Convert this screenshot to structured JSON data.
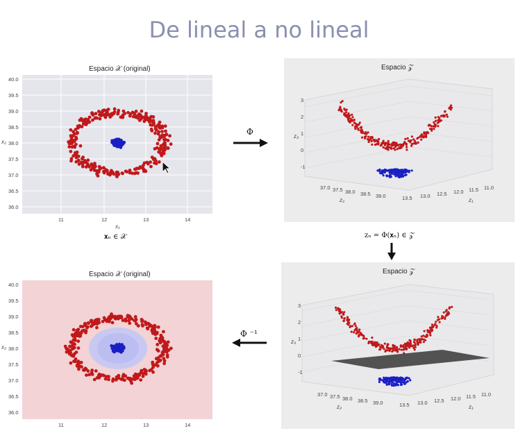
{
  "slide": {
    "title": "De lineal a no lineal"
  },
  "panel_top_left": {
    "title": "Espacio 𝒳 (original)",
    "y_ticks": [
      "40.0",
      "39.5",
      "39.0",
      "38.5",
      "38.0",
      "37.5",
      "37.0",
      "36.5",
      "36.0"
    ],
    "x_ticks": [
      "11",
      "12",
      "13",
      "14"
    ],
    "xlabel": "x₁",
    "ylabel": "x₂",
    "caption": "𝐱ₙ ∈ 𝒳"
  },
  "panel_top_right": {
    "title": "Espacio 𝒵",
    "z_ticks": [
      "3",
      "2",
      "1",
      "0",
      "-1"
    ],
    "x_ticks": [
      "37.0",
      "37.5",
      "38.0",
      "38.5",
      "39.0",
      "13.5",
      "13.0",
      "12.5",
      "12.0",
      "11.5",
      "11.0"
    ],
    "zlabel": "z₃",
    "xlabel": "z₁",
    "ylabel": "z₂"
  },
  "arrow_phi": {
    "label": "Φ"
  },
  "arrow_down": {
    "label": "zₙ = Φ(𝐱ₙ) ∈ 𝒵"
  },
  "panel_bottom_right": {
    "title": "Espacio 𝒵",
    "z_ticks": [
      "3",
      "2",
      "1",
      "0",
      "-1"
    ],
    "x_ticks": [
      "37.0",
      "37.5",
      "38.0",
      "38.5",
      "39.0",
      "13.5",
      "13.0",
      "12.5",
      "12.0",
      "11.5",
      "11.0"
    ],
    "zlabel": "z₃",
    "xlabel": "z₁",
    "ylabel": "z₂"
  },
  "arrow_phi_inv": {
    "label": "Φ ⁻¹"
  },
  "panel_bottom_left": {
    "title": "Espacio 𝒳 (original)",
    "y_ticks": [
      "40.0",
      "39.5",
      "39.0",
      "38.5",
      "38.0",
      "37.5",
      "37.0",
      "36.5",
      "36.0"
    ],
    "x_ticks": [
      "11",
      "12",
      "13",
      "14"
    ],
    "ylabel": "x₂"
  },
  "colors": {
    "outer_class": "#c0191b",
    "inner_class": "#1a1fc4",
    "plot_bg": "#e5e5ec",
    "region_red": "#f3d3d5",
    "region_blue": "#c8c9f2",
    "plane": "#4a4a4a"
  }
}
